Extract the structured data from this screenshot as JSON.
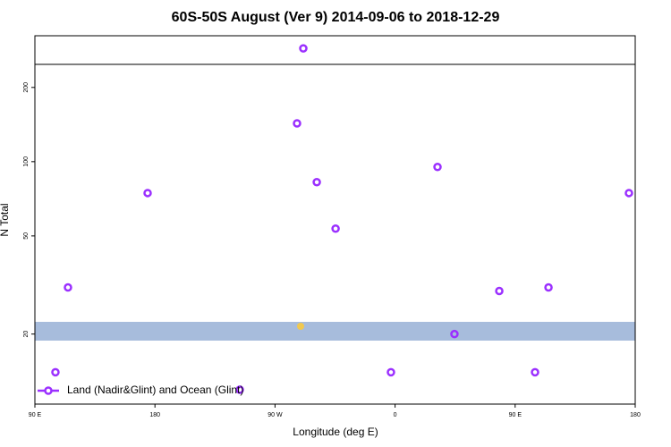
{
  "chart_data": {
    "type": "scatter",
    "title": "60S-50S August (Ver 9)   2014-09-06 to 2018-12-29",
    "x_label": "Longitude (deg E)",
    "y_label": "N Total",
    "log_y": true,
    "xlim": [
      -270,
      180
    ],
    "ylim": [
      10.4,
      324
    ],
    "xticks": [
      {
        "value": -270,
        "label": "90 E"
      },
      {
        "value": -180,
        "label": "180"
      },
      {
        "value": -90,
        "label": "90 W"
      },
      0,
      {
        "value": 90,
        "label": "90 E"
      },
      {
        "value": 180,
        "label": "180"
      }
    ],
    "yticks": [
      20,
      50,
      100,
      200
    ],
    "legend": "bottom-left",
    "series": [
      {
        "name": "Land (Nadir&Glint) and Ocean (Glint)",
        "color": "#9b30ff",
        "x": [
          -254.6,
          -245.2,
          -185.5,
          -116.4,
          -73.5,
          -68.8,
          -58.7,
          -44.6,
          -3.1,
          31.8,
          44.5,
          78.1,
          104.9,
          115,
          175.3
        ],
        "values": [
          14.0,
          30.9,
          74.6,
          11.9,
          143,
          288,
          82.6,
          53.5,
          14.0,
          95.2,
          20,
          29.9,
          14.0,
          30.9,
          74.6
        ]
      }
    ]
  }
}
